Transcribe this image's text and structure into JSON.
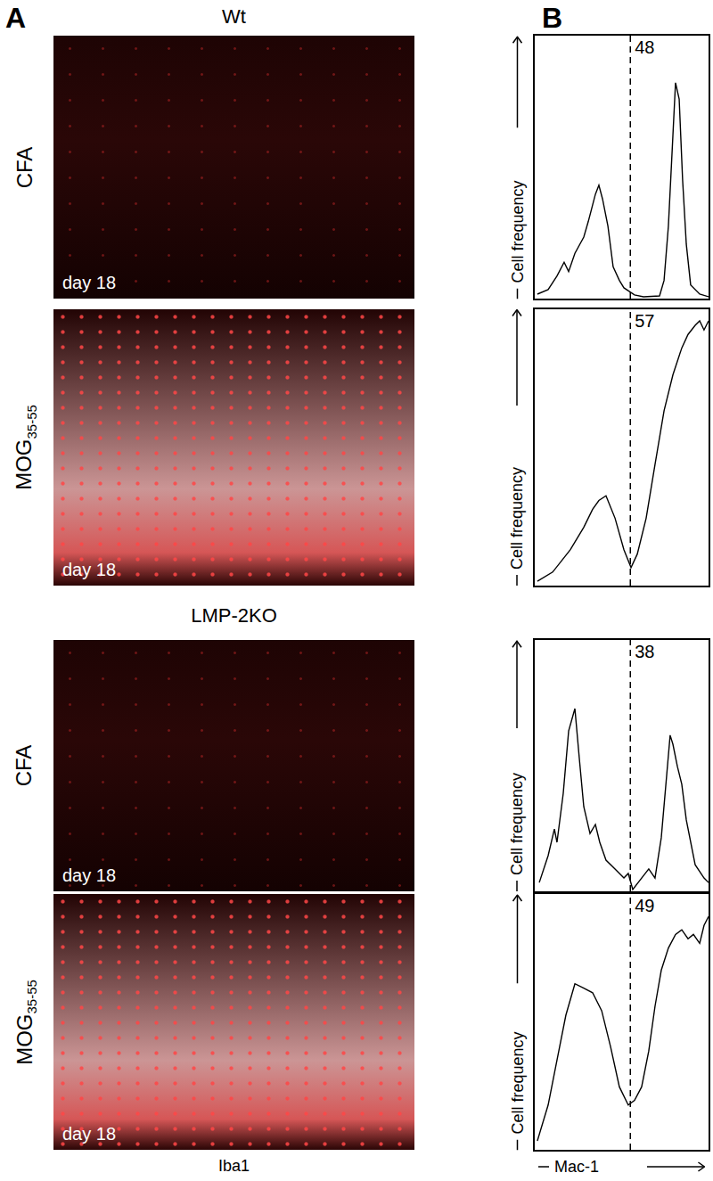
{
  "panel_labels": [
    "A",
    "B"
  ],
  "panel_a": {
    "stain": "Iba1",
    "groups": [
      {
        "title": "Wt",
        "rows": [
          {
            "label": "CFA",
            "time": "day 18"
          },
          {
            "label": "MOG",
            "subscript": "35-55",
            "time": "day 18"
          }
        ]
      },
      {
        "title": "LMP-2KO",
        "rows": [
          {
            "label": "CFA",
            "time": "day 18"
          },
          {
            "label": "MOG",
            "subscript": "35-55",
            "time": "day 18"
          }
        ]
      }
    ]
  },
  "chart_data": [
    {
      "type": "line",
      "ylabel": "Cell frequency",
      "xlim": [
        0,
        100
      ],
      "ylim": [
        0,
        100
      ],
      "tick_labels": false,
      "color": "#000000",
      "gate": 55,
      "percent_positive": 48,
      "x": [
        1.5,
        7.7,
        12.8,
        16.9,
        19.5,
        23.1,
        28.2,
        30.8,
        34.9,
        36.9,
        39.0,
        42.1,
        45.1,
        48.7,
        51.3,
        57.4,
        62.6,
        71.8,
        74.4,
        76.9,
        79.5,
        81.0,
        83.1,
        85.1,
        87.2,
        89.7,
        94.9,
        100
      ],
      "values": [
        1.7,
        3.4,
        8.6,
        13.8,
        10.3,
        17.2,
        23.4,
        29.3,
        39.7,
        43.1,
        37.9,
        27.6,
        12.1,
        6.9,
        4.1,
        1.4,
        0.7,
        1.0,
        6.9,
        27.6,
        62.1,
        82.1,
        75.9,
        44.8,
        20.7,
        5.2,
        1.7,
        0.7
      ]
    },
    {
      "type": "line",
      "ylabel": "Cell frequency",
      "xlim": [
        0,
        100
      ],
      "ylim": [
        0,
        100
      ],
      "tick_labels": false,
      "color": "#000000",
      "gate": 55,
      "percent_positive": 57,
      "x": [
        1.5,
        10.3,
        20.5,
        28.2,
        33.3,
        36.9,
        41.0,
        46.2,
        51.3,
        55.4,
        59.0,
        64.1,
        69.2,
        74.4,
        79.5,
        84.6,
        88.2,
        92.3,
        94.9,
        97.4,
        100
      ],
      "values": [
        1.6,
        4.9,
        13.0,
        21.1,
        27.6,
        30.8,
        32.5,
        24.4,
        13.0,
        6.5,
        11.4,
        24.4,
        43.8,
        63.3,
        76.3,
        86.0,
        90.9,
        94.2,
        95.8,
        92.5,
        95.8
      ]
    },
    {
      "type": "line",
      "ylabel": "Cell frequency",
      "xlim": [
        0,
        100
      ],
      "ylim": [
        0,
        100
      ],
      "tick_labels": false,
      "color": "#000000",
      "gate": 55,
      "percent_positive": 38,
      "x": [
        2.6,
        7.7,
        11.3,
        12.8,
        16.4,
        19.5,
        23.1,
        25.6,
        28.2,
        31.8,
        34.9,
        37.4,
        41.0,
        46.2,
        51.3,
        53.8,
        56.4,
        61.5,
        65.6,
        69.2,
        72.8,
        75.9,
        77.9,
        79.5,
        82.1,
        84.6,
        87.2,
        92.3,
        97.4,
        100
      ],
      "values": [
        3.5,
        14.2,
        24.8,
        19.5,
        39.0,
        63.8,
        72.7,
        53.2,
        33.7,
        23.0,
        26.6,
        19.5,
        12.4,
        8.9,
        5.3,
        7.1,
        0.7,
        5.3,
        8.9,
        5.3,
        21.3,
        46.1,
        62.1,
        58.5,
        49.6,
        42.6,
        28.4,
        10.6,
        5.3,
        3.5
      ]
    },
    {
      "type": "line",
      "ylabel": "Cell frequency",
      "xlabel": "Mac-1",
      "xlim": [
        0,
        100
      ],
      "ylim": [
        0,
        100
      ],
      "tick_labels": false,
      "color": "#000000",
      "gate": 55,
      "percent_positive": 49,
      "x": [
        1.5,
        7.7,
        12.8,
        17.9,
        23.1,
        28.2,
        33.3,
        38.5,
        43.6,
        48.7,
        53.8,
        57.4,
        61.5,
        65.6,
        69.2,
        72.8,
        76.9,
        81.0,
        84.6,
        88.2,
        91.3,
        94.9,
        97.4,
        100
      ],
      "values": [
        3.5,
        17.5,
        35.1,
        52.6,
        64.9,
        63.2,
        61.4,
        54.4,
        40.4,
        24.6,
        17.5,
        19.3,
        24.6,
        38.6,
        56.1,
        70.2,
        78.9,
        84.2,
        86.0,
        82.5,
        84.2,
        80.7,
        87.7,
        91.2
      ]
    }
  ]
}
